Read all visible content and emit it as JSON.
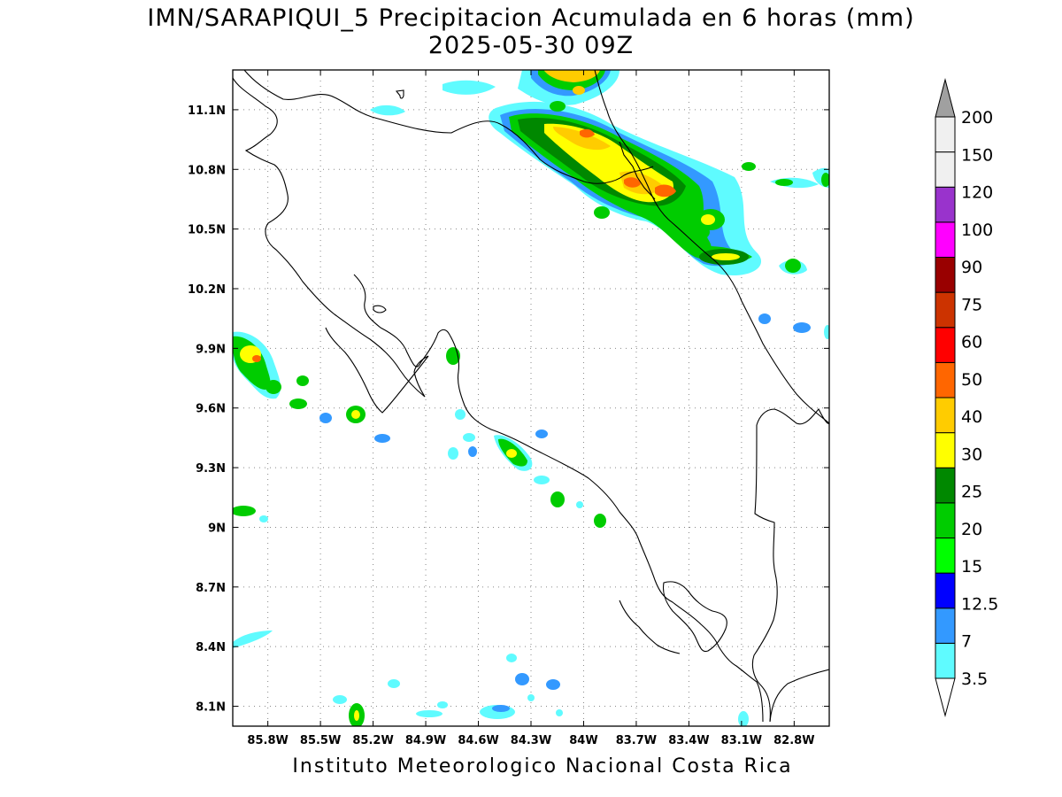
{
  "title": {
    "line1": "IMN/SARAPIQUI_5 Precipitacion Acumulada en 6 horas (mm)",
    "line2": "2025-05-30 09Z"
  },
  "footer": "Instituto Meteorologico Nacional Costa Rica",
  "map": {
    "lon_range": [
      -86.0,
      -82.6
    ],
    "lat_range": [
      8.0,
      11.3
    ],
    "lon_ticks": [
      {
        "v": -85.8,
        "label": "85.8W"
      },
      {
        "v": -85.5,
        "label": "85.5W"
      },
      {
        "v": -85.2,
        "label": "85.2W"
      },
      {
        "v": -84.9,
        "label": "84.9W"
      },
      {
        "v": -84.6,
        "label": "84.6W"
      },
      {
        "v": -84.3,
        "label": "84.3W"
      },
      {
        "v": -84.0,
        "label": "84W"
      },
      {
        "v": -83.7,
        "label": "83.7W"
      },
      {
        "v": -83.4,
        "label": "83.4W"
      },
      {
        "v": -83.1,
        "label": "83.1W"
      },
      {
        "v": -82.8,
        "label": "82.8W"
      }
    ],
    "lat_ticks": [
      {
        "v": 11.1,
        "label": "11.1N"
      },
      {
        "v": 10.8,
        "label": "10.8N"
      },
      {
        "v": 10.5,
        "label": "10.5N"
      },
      {
        "v": 10.2,
        "label": "10.2N"
      },
      {
        "v": 9.9,
        "label": "9.9N"
      },
      {
        "v": 9.6,
        "label": "9.6N"
      },
      {
        "v": 9.3,
        "label": "9.3N"
      },
      {
        "v": 9.0,
        "label": "9N"
      },
      {
        "v": 8.7,
        "label": "8.7N"
      },
      {
        "v": 8.4,
        "label": "8.4N"
      },
      {
        "v": 8.1,
        "label": "8.1N"
      }
    ],
    "grid": "dotted",
    "colorbar": {
      "labels": [
        "3.5",
        "7",
        "12.5",
        "15",
        "20",
        "25",
        "30",
        "40",
        "50",
        "60",
        "75",
        "90",
        "100",
        "120",
        "150",
        "200"
      ],
      "colors": [
        "#5ffbff",
        "#3399ff",
        "#0000ff",
        "#00ff00",
        "#00cc00",
        "#008800",
        "#ffff00",
        "#ffcc00",
        "#ff6600",
        "#ff0000",
        "#cc3300",
        "#990000",
        "#ff00ff",
        "#9933cc",
        "#f0f0f0",
        "#a0a0a0"
      ],
      "position": "right"
    }
  }
}
